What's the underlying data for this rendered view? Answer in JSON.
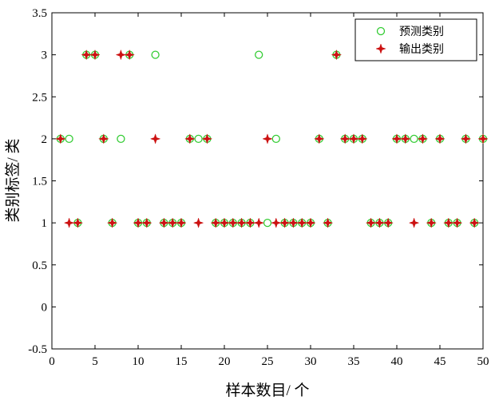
{
  "chart_data": {
    "type": "scatter",
    "xlabel": "样本数目/ 个",
    "ylabel": "类别标签/ 类",
    "x": [
      1,
      2,
      3,
      4,
      5,
      6,
      7,
      8,
      9,
      10,
      11,
      12,
      13,
      14,
      15,
      16,
      17,
      18,
      19,
      20,
      21,
      22,
      23,
      24,
      25,
      26,
      27,
      28,
      29,
      30,
      31,
      32,
      33,
      34,
      35,
      36,
      37,
      38,
      39,
      40,
      41,
      42,
      43,
      44,
      45,
      46,
      47,
      48,
      49,
      50
    ],
    "series": [
      {
        "name": "预测类别",
        "color": "#33cc33",
        "marker": "circle",
        "values": [
          2,
          2,
          1,
          3,
          3,
          2,
          1,
          2,
          3,
          1,
          1,
          3,
          1,
          1,
          1,
          2,
          2,
          2,
          1,
          1,
          1,
          1,
          1,
          3,
          1,
          2,
          1,
          1,
          1,
          1,
          2,
          1,
          3,
          2,
          2,
          2,
          1,
          1,
          1,
          2,
          2,
          2,
          2,
          1,
          2,
          1,
          1,
          2,
          1,
          2
        ]
      },
      {
        "name": "输出类别",
        "color": "#cc1111",
        "marker": "star",
        "values": [
          2,
          1,
          1,
          3,
          3,
          2,
          1,
          3,
          3,
          1,
          1,
          2,
          1,
          1,
          1,
          2,
          1,
          2,
          1,
          1,
          1,
          1,
          1,
          1,
          2,
          1,
          1,
          1,
          1,
          1,
          2,
          1,
          3,
          2,
          2,
          2,
          1,
          1,
          1,
          2,
          2,
          1,
          2,
          1,
          2,
          1,
          1,
          2,
          1,
          2
        ]
      }
    ],
    "xlim": [
      0,
      50
    ],
    "xticks": [
      0,
      5,
      10,
      15,
      20,
      25,
      30,
      35,
      40,
      45,
      50
    ],
    "ylim": [
      -0.5,
      3.5
    ],
    "yticks": [
      -0.5,
      0,
      0.5,
      1,
      1.5,
      2,
      2.5,
      3,
      3.5
    ],
    "legend": "upper right"
  }
}
